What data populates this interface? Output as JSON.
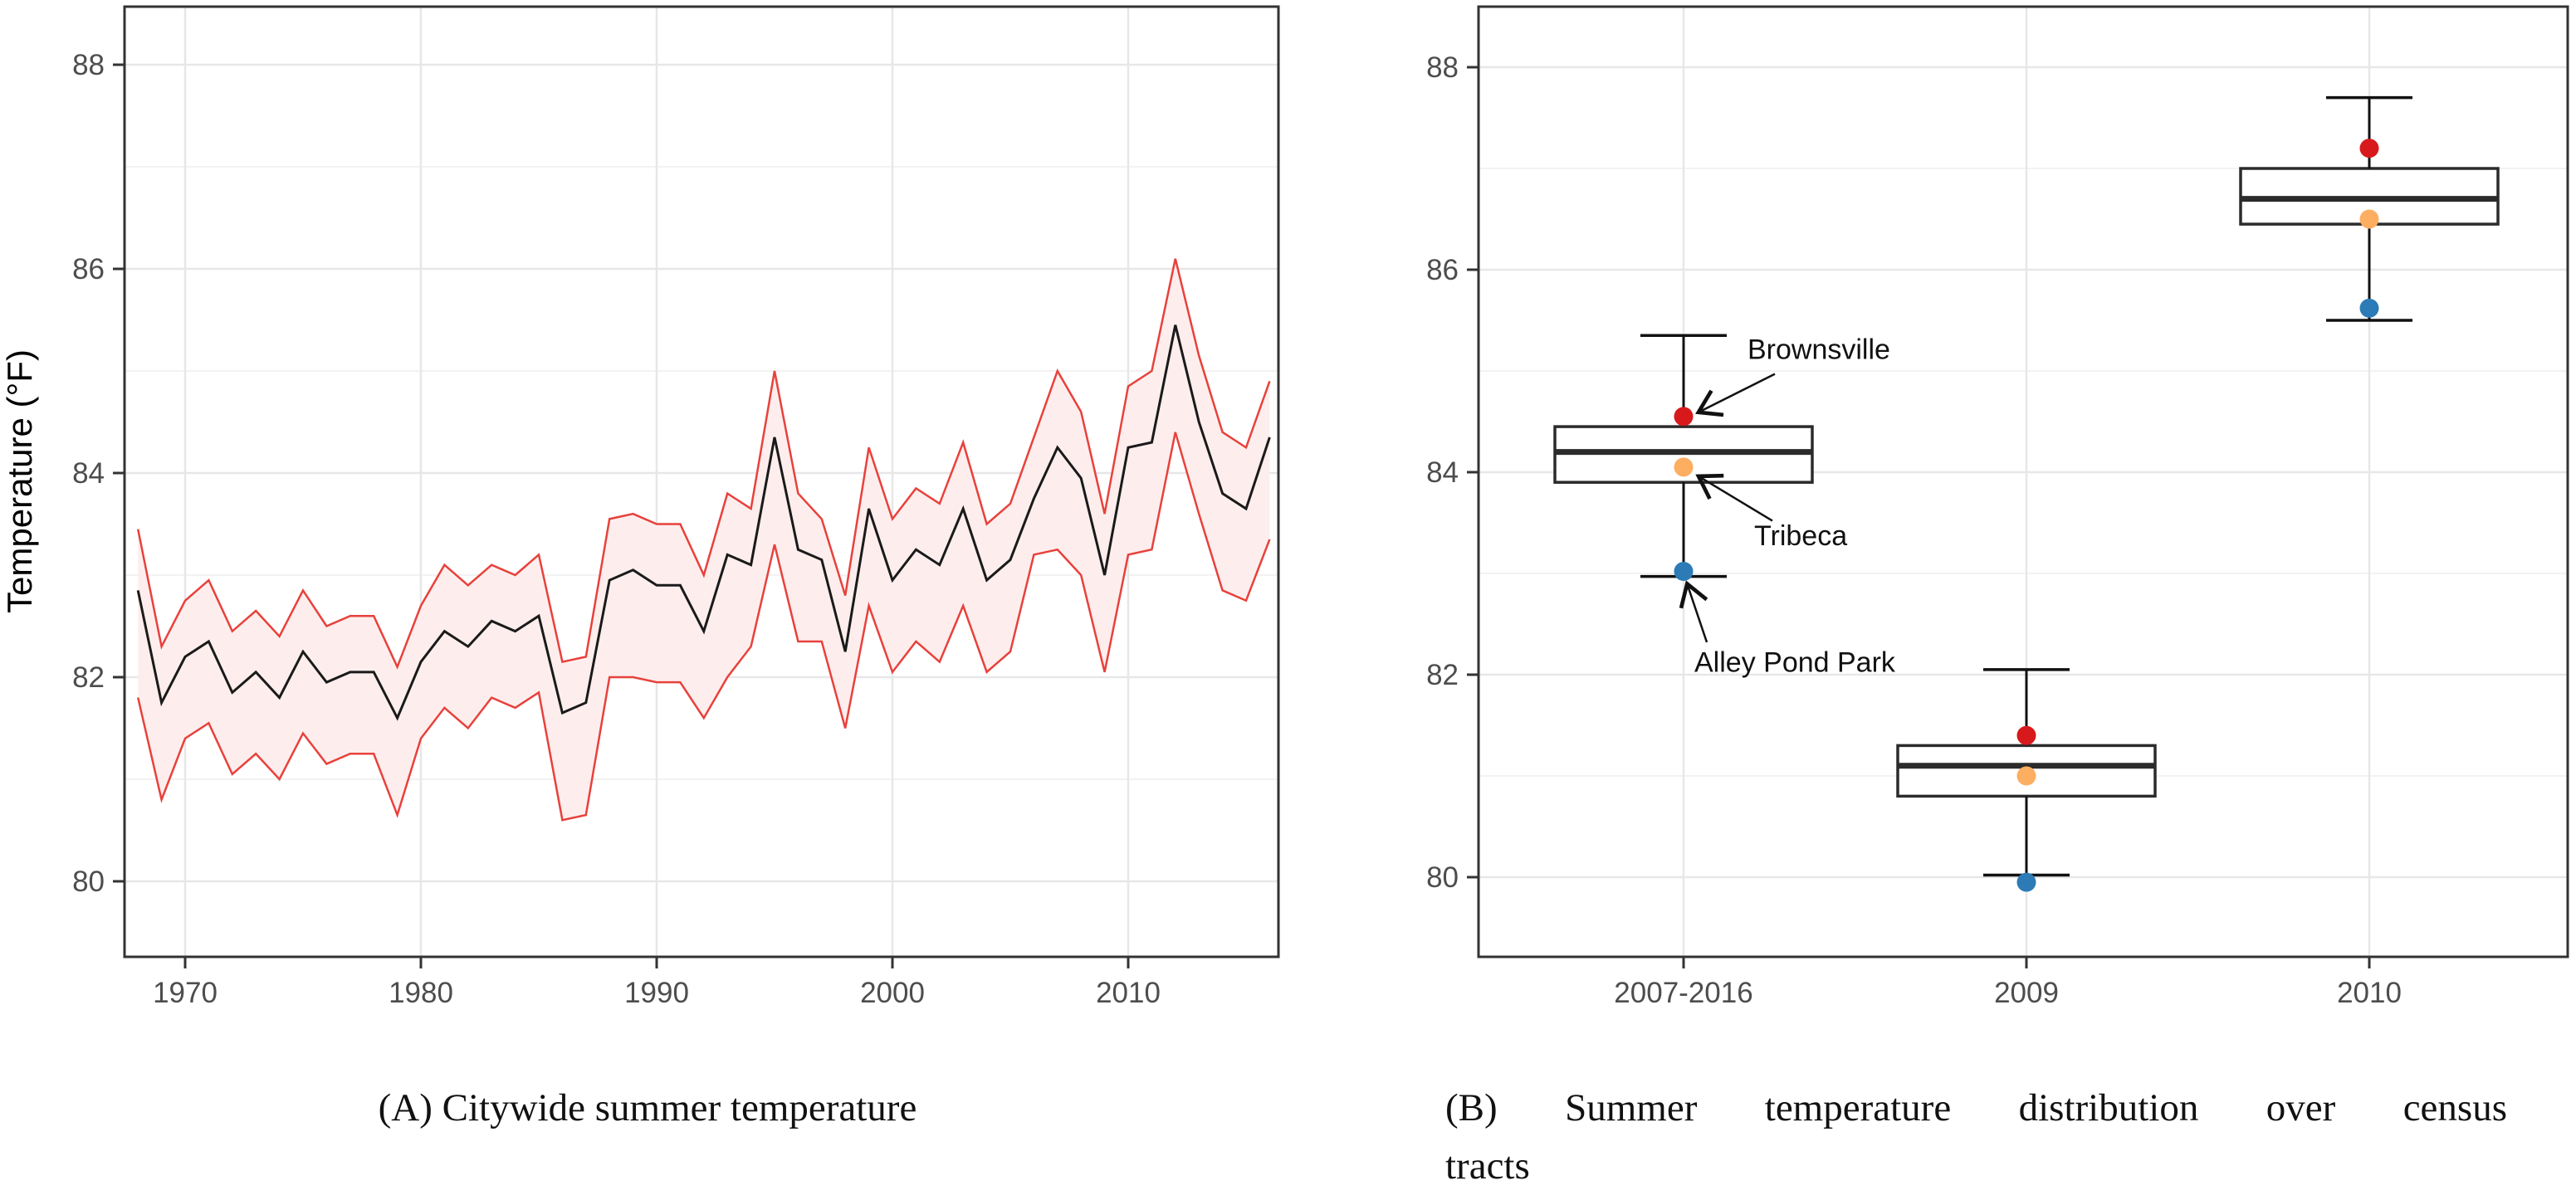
{
  "figure": {
    "background": "#ffffff",
    "captions": {
      "a": "(A) Citywide summer temperature",
      "b_line1": "(B) Summer temperature distribution over census",
      "b_line2": "tracts"
    }
  },
  "colors": {
    "mean_line": "#1a1a1a",
    "band_stroke": "#e8413c",
    "band_fill": "#fdeeed",
    "grid_major": "#e7e7e7",
    "grid_minor": "#f2f2f2",
    "panel_border": "#333333",
    "tick_label": "#4d4d4d",
    "box_stroke": "#2b2b2b",
    "annotation": "#111111"
  },
  "chart_data": [
    {
      "type": "line",
      "title": "",
      "caption": "(A) Citywide summer temperature",
      "xlabel": "",
      "ylabel": "Temperature (°F)",
      "x_ticks": [
        1970,
        1980,
        1990,
        2000,
        2010
      ],
      "y_ticks": [
        80,
        82,
        84,
        86,
        88
      ],
      "y_minor": [
        81,
        83,
        85,
        87
      ],
      "xlim": [
        1967.4,
        2016.4
      ],
      "ylim": [
        79.26,
        88.57
      ],
      "grid": true,
      "legend": "none",
      "series": [
        {
          "name": "citywide mean summer temperature",
          "x": [
            1968,
            1969,
            1970,
            1971,
            1972,
            1973,
            1974,
            1975,
            1976,
            1977,
            1978,
            1979,
            1980,
            1981,
            1982,
            1983,
            1984,
            1985,
            1986,
            1987,
            1988,
            1989,
            1990,
            1991,
            1992,
            1993,
            1994,
            1995,
            1996,
            1997,
            1998,
            1999,
            2000,
            2001,
            2002,
            2003,
            2004,
            2005,
            2006,
            2007,
            2008,
            2009,
            2010,
            2011,
            2012,
            2013,
            2014,
            2015,
            2016
          ],
          "mean": [
            82.85,
            81.75,
            82.2,
            82.35,
            81.85,
            82.05,
            81.8,
            82.25,
            81.95,
            82.05,
            82.05,
            81.6,
            82.15,
            82.45,
            82.3,
            82.55,
            82.45,
            82.6,
            81.65,
            81.75,
            82.95,
            83.05,
            82.9,
            82.9,
            82.45,
            83.2,
            83.1,
            84.35,
            83.25,
            83.15,
            82.25,
            83.65,
            82.95,
            83.25,
            83.1,
            83.65,
            82.95,
            83.15,
            83.75,
            84.25,
            83.95,
            83.0,
            84.25,
            84.3,
            85.45,
            84.5,
            83.8,
            83.65,
            84.35
          ],
          "lower": [
            81.8,
            80.8,
            81.4,
            81.55,
            81.05,
            81.25,
            81.0,
            81.45,
            81.15,
            81.25,
            81.25,
            80.65,
            81.4,
            81.7,
            81.5,
            81.8,
            81.7,
            81.85,
            80.6,
            80.65,
            82.0,
            82.0,
            81.95,
            81.95,
            81.6,
            82.0,
            82.3,
            83.3,
            82.35,
            82.35,
            81.5,
            82.7,
            82.05,
            82.35,
            82.15,
            82.7,
            82.05,
            82.25,
            83.2,
            83.25,
            83.0,
            82.05,
            83.2,
            83.25,
            84.4,
            83.6,
            82.85,
            82.75,
            83.35
          ],
          "upper": [
            83.45,
            82.3,
            82.75,
            82.95,
            82.45,
            82.65,
            82.4,
            82.85,
            82.5,
            82.6,
            82.6,
            82.1,
            82.7,
            83.1,
            82.9,
            83.1,
            83.0,
            83.2,
            82.15,
            82.2,
            83.55,
            83.6,
            83.5,
            83.5,
            83.0,
            83.8,
            83.65,
            85.0,
            83.8,
            83.55,
            82.8,
            84.25,
            83.55,
            83.85,
            83.7,
            84.3,
            83.5,
            83.7,
            84.35,
            85.0,
            84.6,
            83.6,
            84.85,
            85.0,
            86.1,
            85.15,
            84.4,
            84.25,
            84.9
          ]
        }
      ]
    },
    {
      "type": "boxplot",
      "title": "",
      "caption": "(B) Summer temperature distribution over census tracts",
      "xlabel": "",
      "ylabel": "",
      "categories": [
        "2007-2016",
        "2009",
        "2010"
      ],
      "y_ticks": [
        80,
        82,
        84,
        86,
        88
      ],
      "y_minor": [
        81,
        83,
        85,
        87
      ],
      "ylim": [
        79.21,
        88.6
      ],
      "grid": true,
      "legend": "none",
      "boxes": [
        {
          "category": "2007-2016",
          "whisker_low": 82.97,
          "q1": 83.9,
          "median": 84.2,
          "q3": 84.45,
          "whisker_high": 85.35
        },
        {
          "category": "2009",
          "whisker_low": 80.02,
          "q1": 80.8,
          "median": 81.1,
          "q3": 81.3,
          "whisker_high": 82.05
        },
        {
          "category": "2010",
          "whisker_low": 85.5,
          "q1": 86.45,
          "median": 86.7,
          "q3": 87.0,
          "whisker_high": 87.7
        }
      ],
      "locations": [
        {
          "name": "Brownsville",
          "color": "#d7191c",
          "values": [
            84.55,
            81.4,
            87.2
          ]
        },
        {
          "name": "Tribeca",
          "color": "#fdae61",
          "values": [
            84.05,
            81.0,
            86.5
          ]
        },
        {
          "name": "Alley Pond Park",
          "color": "#2c7bb6",
          "values": [
            83.02,
            79.95,
            85.62
          ]
        }
      ],
      "annotations": [
        {
          "label": "Brownsville",
          "text": {
            "dx": 77,
            "value": 85.12
          },
          "arrow": {
            "from": {
              "dx": 110,
              "value": 84.97
            },
            "to": {
              "dx": 20,
              "value": 84.6
            }
          }
        },
        {
          "label": "Tribeca",
          "text": {
            "dx": 85,
            "value": 83.28
          },
          "arrow": {
            "from": {
              "dx": 107,
              "value": 83.52
            },
            "to": {
              "dx": 20,
              "value": 83.95
            }
          }
        },
        {
          "label": "Alley Pond Park",
          "text": {
            "dx": 13,
            "value": 82.03
          },
          "arrow": {
            "from": {
              "dx": 28,
              "value": 82.32
            },
            "to": {
              "dx": 5,
              "value": 82.88
            }
          }
        }
      ]
    }
  ]
}
